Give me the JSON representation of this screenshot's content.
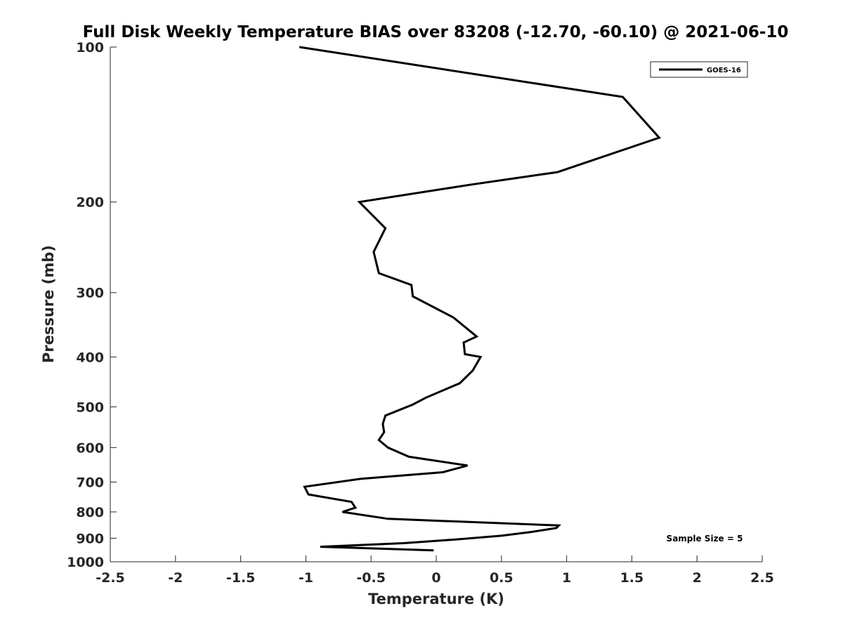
{
  "chart_data": {
    "type": "line",
    "title": "Full Disk Weekly Temperature BIAS over 83208 (-12.70, -60.10) @ 2021-06-10",
    "xlabel": "Temperature (K)",
    "ylabel": "Pressure (mb)",
    "xlim": [
      -2.5,
      2.5
    ],
    "ylim": [
      1000,
      100
    ],
    "yscale": "log",
    "y_reversed": true,
    "x_ticks": [
      -2.5,
      -2,
      -1.5,
      -1,
      -0.5,
      0,
      0.5,
      1,
      1.5,
      2,
      2.5
    ],
    "x_tick_labels": [
      "-2.5",
      "-2",
      "-1.5",
      "-1",
      "-0.5",
      "0",
      "0.5",
      "1",
      "1.5",
      "2",
      "2.5"
    ],
    "y_ticks": [
      100,
      200,
      300,
      400,
      500,
      600,
      700,
      800,
      900,
      1000
    ],
    "y_tick_labels": [
      "100",
      "200",
      "300",
      "400",
      "500",
      "600",
      "700",
      "800",
      "900",
      "1000"
    ],
    "grid": false,
    "legend_position": "top-right",
    "annotation": "Sample Size = 5",
    "series": [
      {
        "name": "GOES-16",
        "color": "#000000",
        "points": [
          {
            "x": -1.05,
            "y": 100
          },
          {
            "x": 1.43,
            "y": 125
          },
          {
            "x": 1.71,
            "y": 150
          },
          {
            "x": 0.93,
            "y": 175
          },
          {
            "x": 0.27,
            "y": 185
          },
          {
            "x": -0.59,
            "y": 200
          },
          {
            "x": -0.39,
            "y": 225
          },
          {
            "x": -0.48,
            "y": 250
          },
          {
            "x": -0.44,
            "y": 275
          },
          {
            "x": -0.19,
            "y": 290
          },
          {
            "x": -0.18,
            "y": 305
          },
          {
            "x": 0.13,
            "y": 335
          },
          {
            "x": 0.31,
            "y": 365
          },
          {
            "x": 0.21,
            "y": 375
          },
          {
            "x": 0.22,
            "y": 395
          },
          {
            "x": 0.34,
            "y": 400
          },
          {
            "x": 0.28,
            "y": 425
          },
          {
            "x": 0.18,
            "y": 450
          },
          {
            "x": -0.08,
            "y": 480
          },
          {
            "x": -0.18,
            "y": 495
          },
          {
            "x": -0.39,
            "y": 520
          },
          {
            "x": -0.41,
            "y": 540
          },
          {
            "x": -0.4,
            "y": 560
          },
          {
            "x": -0.44,
            "y": 580
          },
          {
            "x": -0.37,
            "y": 600
          },
          {
            "x": -0.21,
            "y": 625
          },
          {
            "x": 0.24,
            "y": 650
          },
          {
            "x": 0.05,
            "y": 670
          },
          {
            "x": -0.58,
            "y": 690
          },
          {
            "x": -1.01,
            "y": 715
          },
          {
            "x": -0.98,
            "y": 740
          },
          {
            "x": -0.65,
            "y": 765
          },
          {
            "x": -0.62,
            "y": 785
          },
          {
            "x": -0.72,
            "y": 800
          },
          {
            "x": -0.37,
            "y": 825
          },
          {
            "x": 0.94,
            "y": 850
          },
          {
            "x": 0.92,
            "y": 860
          },
          {
            "x": 0.73,
            "y": 875
          },
          {
            "x": 0.5,
            "y": 890
          },
          {
            "x": 0.15,
            "y": 905
          },
          {
            "x": -0.25,
            "y": 920
          },
          {
            "x": -0.89,
            "y": 935
          },
          {
            "x": -0.02,
            "y": 950
          }
        ]
      }
    ]
  }
}
